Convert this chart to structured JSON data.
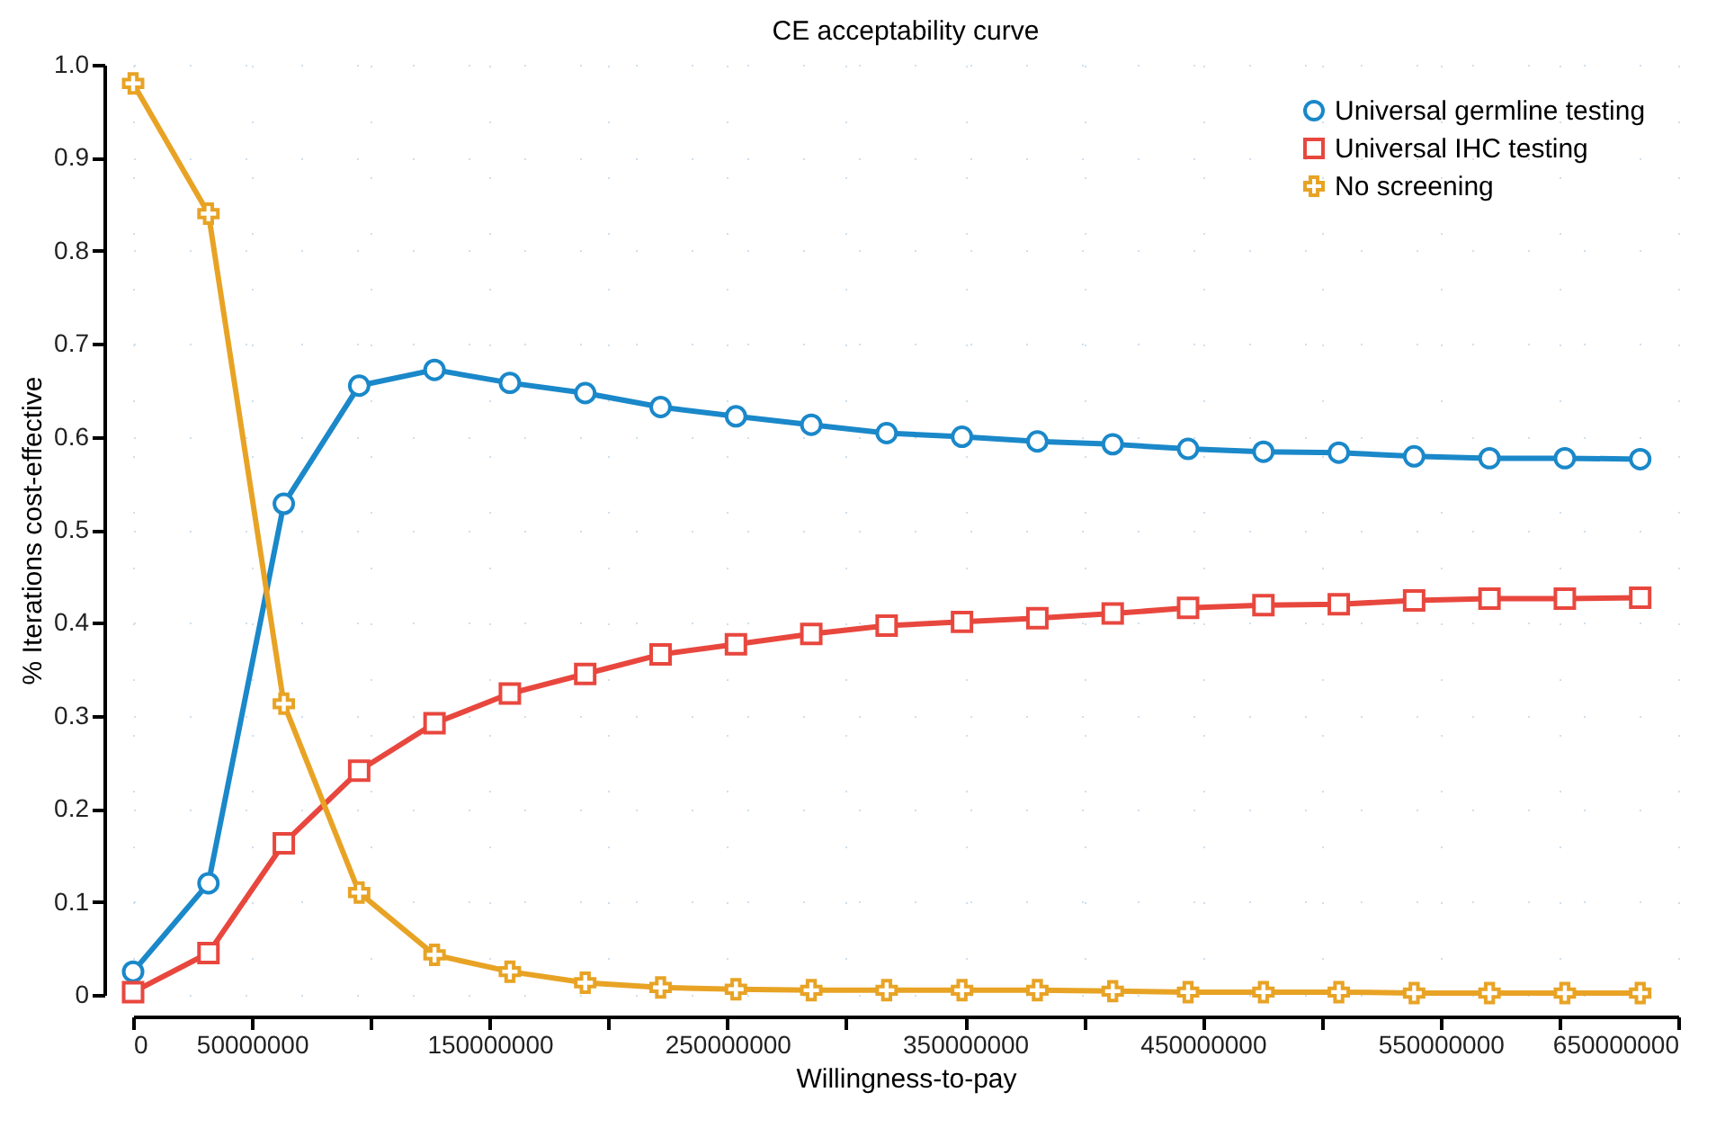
{
  "chart_data": {
    "type": "line",
    "title": "CE acceptability curve",
    "xlabel": "Willingness-to-pay",
    "ylabel": "% Iterations cost-effective",
    "x": [
      0,
      31700000,
      63400000,
      95100000,
      126800000,
      158500000,
      190200000,
      221900000,
      253600000,
      285300000,
      317000000,
      348700000,
      380400000,
      412100000,
      443800000,
      475500000,
      507200000,
      538900000,
      570600000,
      602300000,
      634000000
    ],
    "series": [
      {
        "name": "Universal germline testing",
        "color": "#1a88c9",
        "marker": "circle",
        "values": [
          0.025,
          0.12,
          0.528,
          0.655,
          0.672,
          0.658,
          0.647,
          0.632,
          0.622,
          0.613,
          0.604,
          0.6,
          0.595,
          0.592,
          0.587,
          0.584,
          0.583,
          0.579,
          0.577,
          0.577,
          0.576
        ]
      },
      {
        "name": "Universal IHC testing",
        "color": "#e8473e",
        "marker": "square",
        "values": [
          0.003,
          0.045,
          0.163,
          0.241,
          0.292,
          0.324,
          0.345,
          0.366,
          0.377,
          0.388,
          0.397,
          0.401,
          0.405,
          0.41,
          0.416,
          0.419,
          0.42,
          0.424,
          0.426,
          0.426,
          0.427
        ]
      },
      {
        "name": "No screening",
        "color": "#e8a325",
        "marker": "cross",
        "values": [
          0.98,
          0.84,
          0.313,
          0.11,
          0.043,
          0.025,
          0.013,
          0.008,
          0.006,
          0.005,
          0.005,
          0.005,
          0.005,
          0.004,
          0.003,
          0.003,
          0.003,
          0.002,
          0.002,
          0.002,
          0.002
        ]
      }
    ],
    "xlim": [
      0,
      650000000
    ],
    "xticks": [
      0,
      50000000,
      {
        "value": 100000000,
        "label": null
      },
      150000000,
      {
        "value": 200000000,
        "label": null
      },
      250000000,
      {
        "value": 300000000,
        "label": null
      },
      350000000,
      {
        "value": 400000000,
        "label": null
      },
      450000000,
      {
        "value": 500000000,
        "label": null
      },
      550000000,
      {
        "value": 600000000,
        "label": null
      },
      650000000
    ],
    "ylim": [
      0,
      1
    ],
    "yticks": [
      0,
      0.1,
      0.2,
      0.3,
      0.4,
      0.5,
      0.6,
      0.7,
      0.8,
      0.9,
      {
        "value": 1,
        "label": "1.0"
      }
    ],
    "grid": true,
    "legend": "top right",
    "line_style": "solid"
  }
}
